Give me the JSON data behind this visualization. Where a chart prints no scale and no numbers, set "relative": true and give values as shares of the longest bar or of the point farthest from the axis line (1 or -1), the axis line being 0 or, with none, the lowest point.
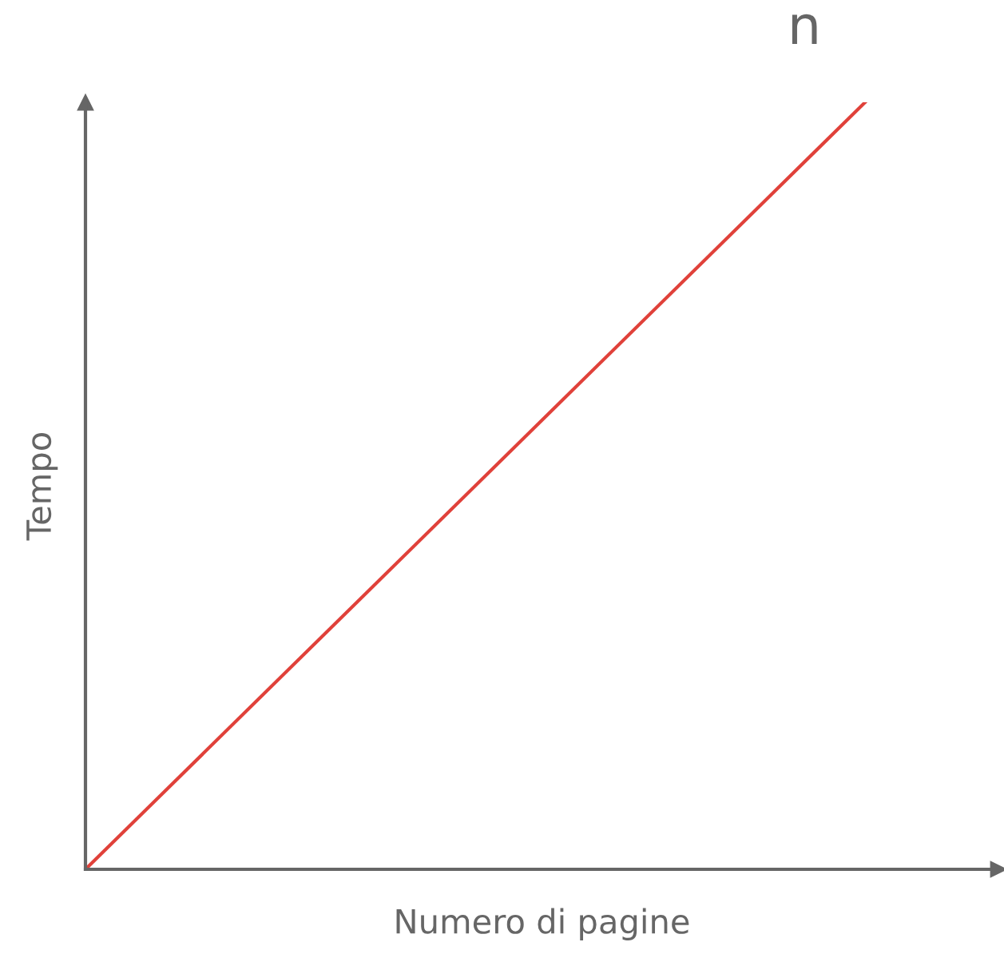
{
  "chart_data": {
    "type": "line",
    "relative": true,
    "xlabel": "Numero di pagine",
    "ylabel": "Tempo",
    "categories": [
      null,
      null
    ],
    "series": [
      {
        "color": "#e0413a",
        "values": [
          0,
          1
        ]
      }
    ],
    "annotations": [
      "n"
    ],
    "legend": false,
    "marker": "none",
    "line_style": "solid",
    "tick_labels": false
  }
}
